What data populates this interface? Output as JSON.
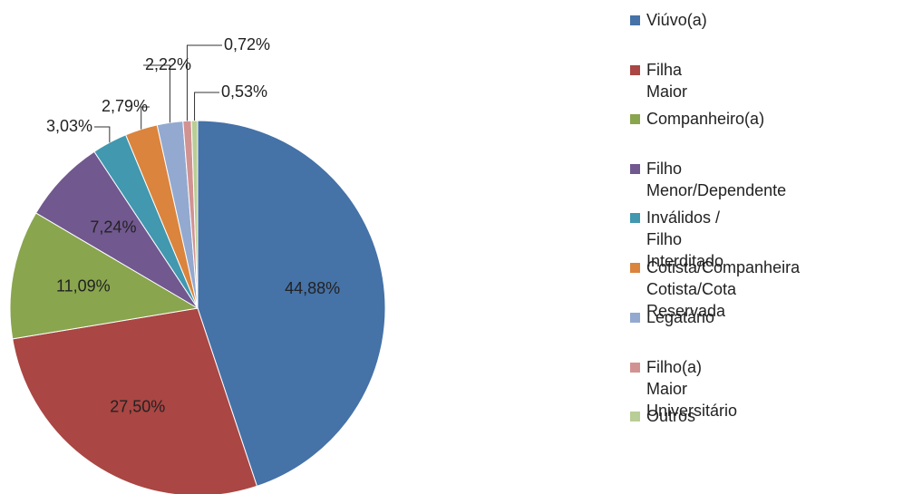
{
  "chart_data": {
    "type": "pie",
    "categories": [
      "Viúvo(a)",
      "Filha Maior",
      "Companheiro(a)",
      "Filho Menor/Dependente",
      "Inválidos / Filho Interditado",
      "Cotista/Companheira\nCotista/Cota Reservada",
      "Legatário",
      "Filho(a) Maior Universitário",
      "Outros"
    ],
    "values": [
      44.88,
      27.5,
      11.09,
      7.24,
      3.03,
      2.79,
      2.22,
      0.72,
      0.53
    ],
    "value_labels": [
      "44,88%",
      "27,50%",
      "11,09%",
      "7,24%",
      "3,03%",
      "2,79%",
      "2,22%",
      "0,72%",
      "0,53%"
    ],
    "colors": [
      "#4572A7",
      "#AA4643",
      "#89A54E",
      "#71588F",
      "#4198AF",
      "#DB843D",
      "#93A9CF",
      "#D19392",
      "#B9CD96"
    ],
    "legend": "right"
  }
}
